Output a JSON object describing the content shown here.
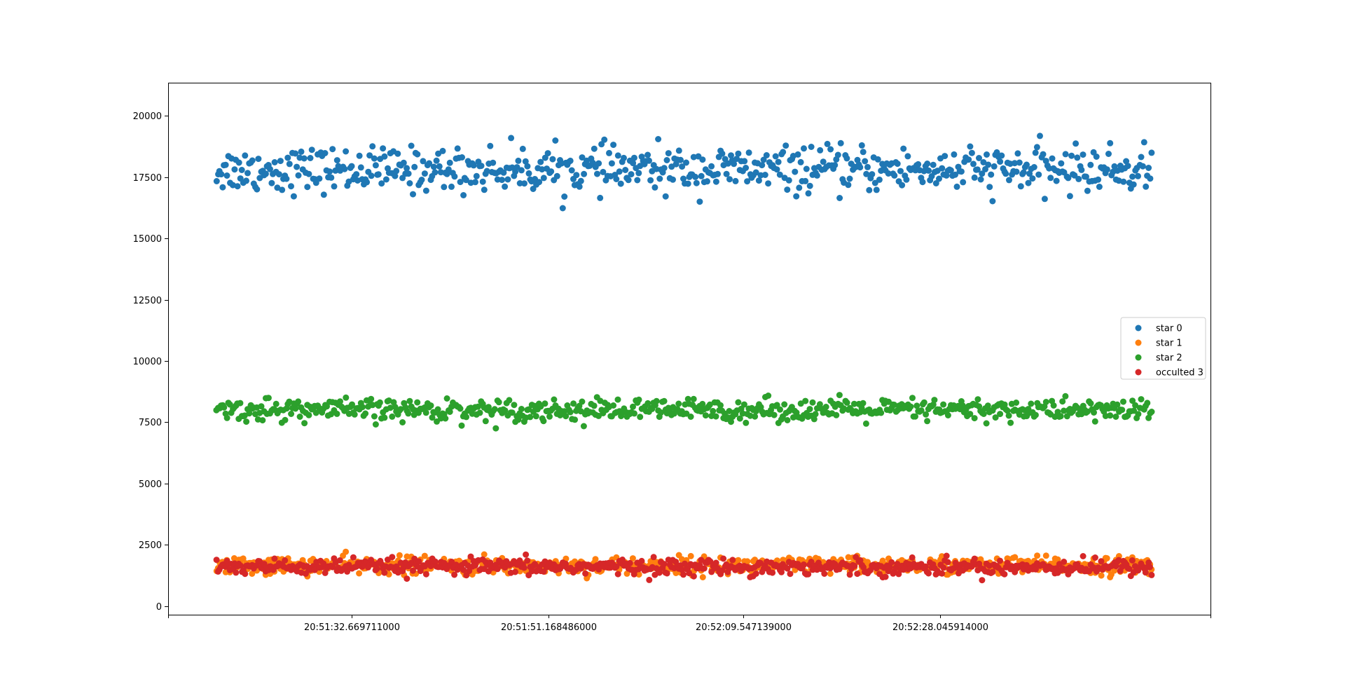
{
  "chart_data": {
    "type": "scatter",
    "title": "",
    "xlabel": "",
    "ylabel": "",
    "ylim": [
      -350,
      21350
    ],
    "yticks": [
      0,
      2500,
      5000,
      7500,
      10000,
      12500,
      15000,
      17500,
      20000
    ],
    "ytick_labels": [
      "0",
      "2500",
      "5000",
      "7500",
      "10000",
      "12500",
      "15000",
      "17500",
      "20000"
    ],
    "x_axis": {
      "unit": "time",
      "start": "20:51:15.400000",
      "end": "20:52:53.500000",
      "ticks": [
        "20:51:32.669711000",
        "20:51:51.168486000",
        "20:52:09.547139000",
        "20:52:28.045914000"
      ],
      "tick_labels": [
        "20:51:32.669711000",
        "20:51:51.168486000",
        "20:52:09.547139000",
        "20:52:28.045914000"
      ]
    },
    "grid": false,
    "legend_position": "right",
    "points_per_series": 630,
    "series": [
      {
        "name": "star 0",
        "color": "#1f77b4",
        "mean": 17800,
        "spread": 900,
        "min": 15400,
        "max": 20400
      },
      {
        "name": "star 1",
        "color": "#ff7f0e",
        "mean": 1650,
        "spread": 360,
        "min": 700,
        "max": 2750
      },
      {
        "name": "star 2",
        "color": "#2ca02c",
        "mean": 8000,
        "spread": 450,
        "min": 6500,
        "max": 9700
      },
      {
        "name": "occulted 3",
        "color": "#d62728",
        "mean": 1600,
        "spread": 320,
        "min": 750,
        "max": 2750
      }
    ]
  }
}
